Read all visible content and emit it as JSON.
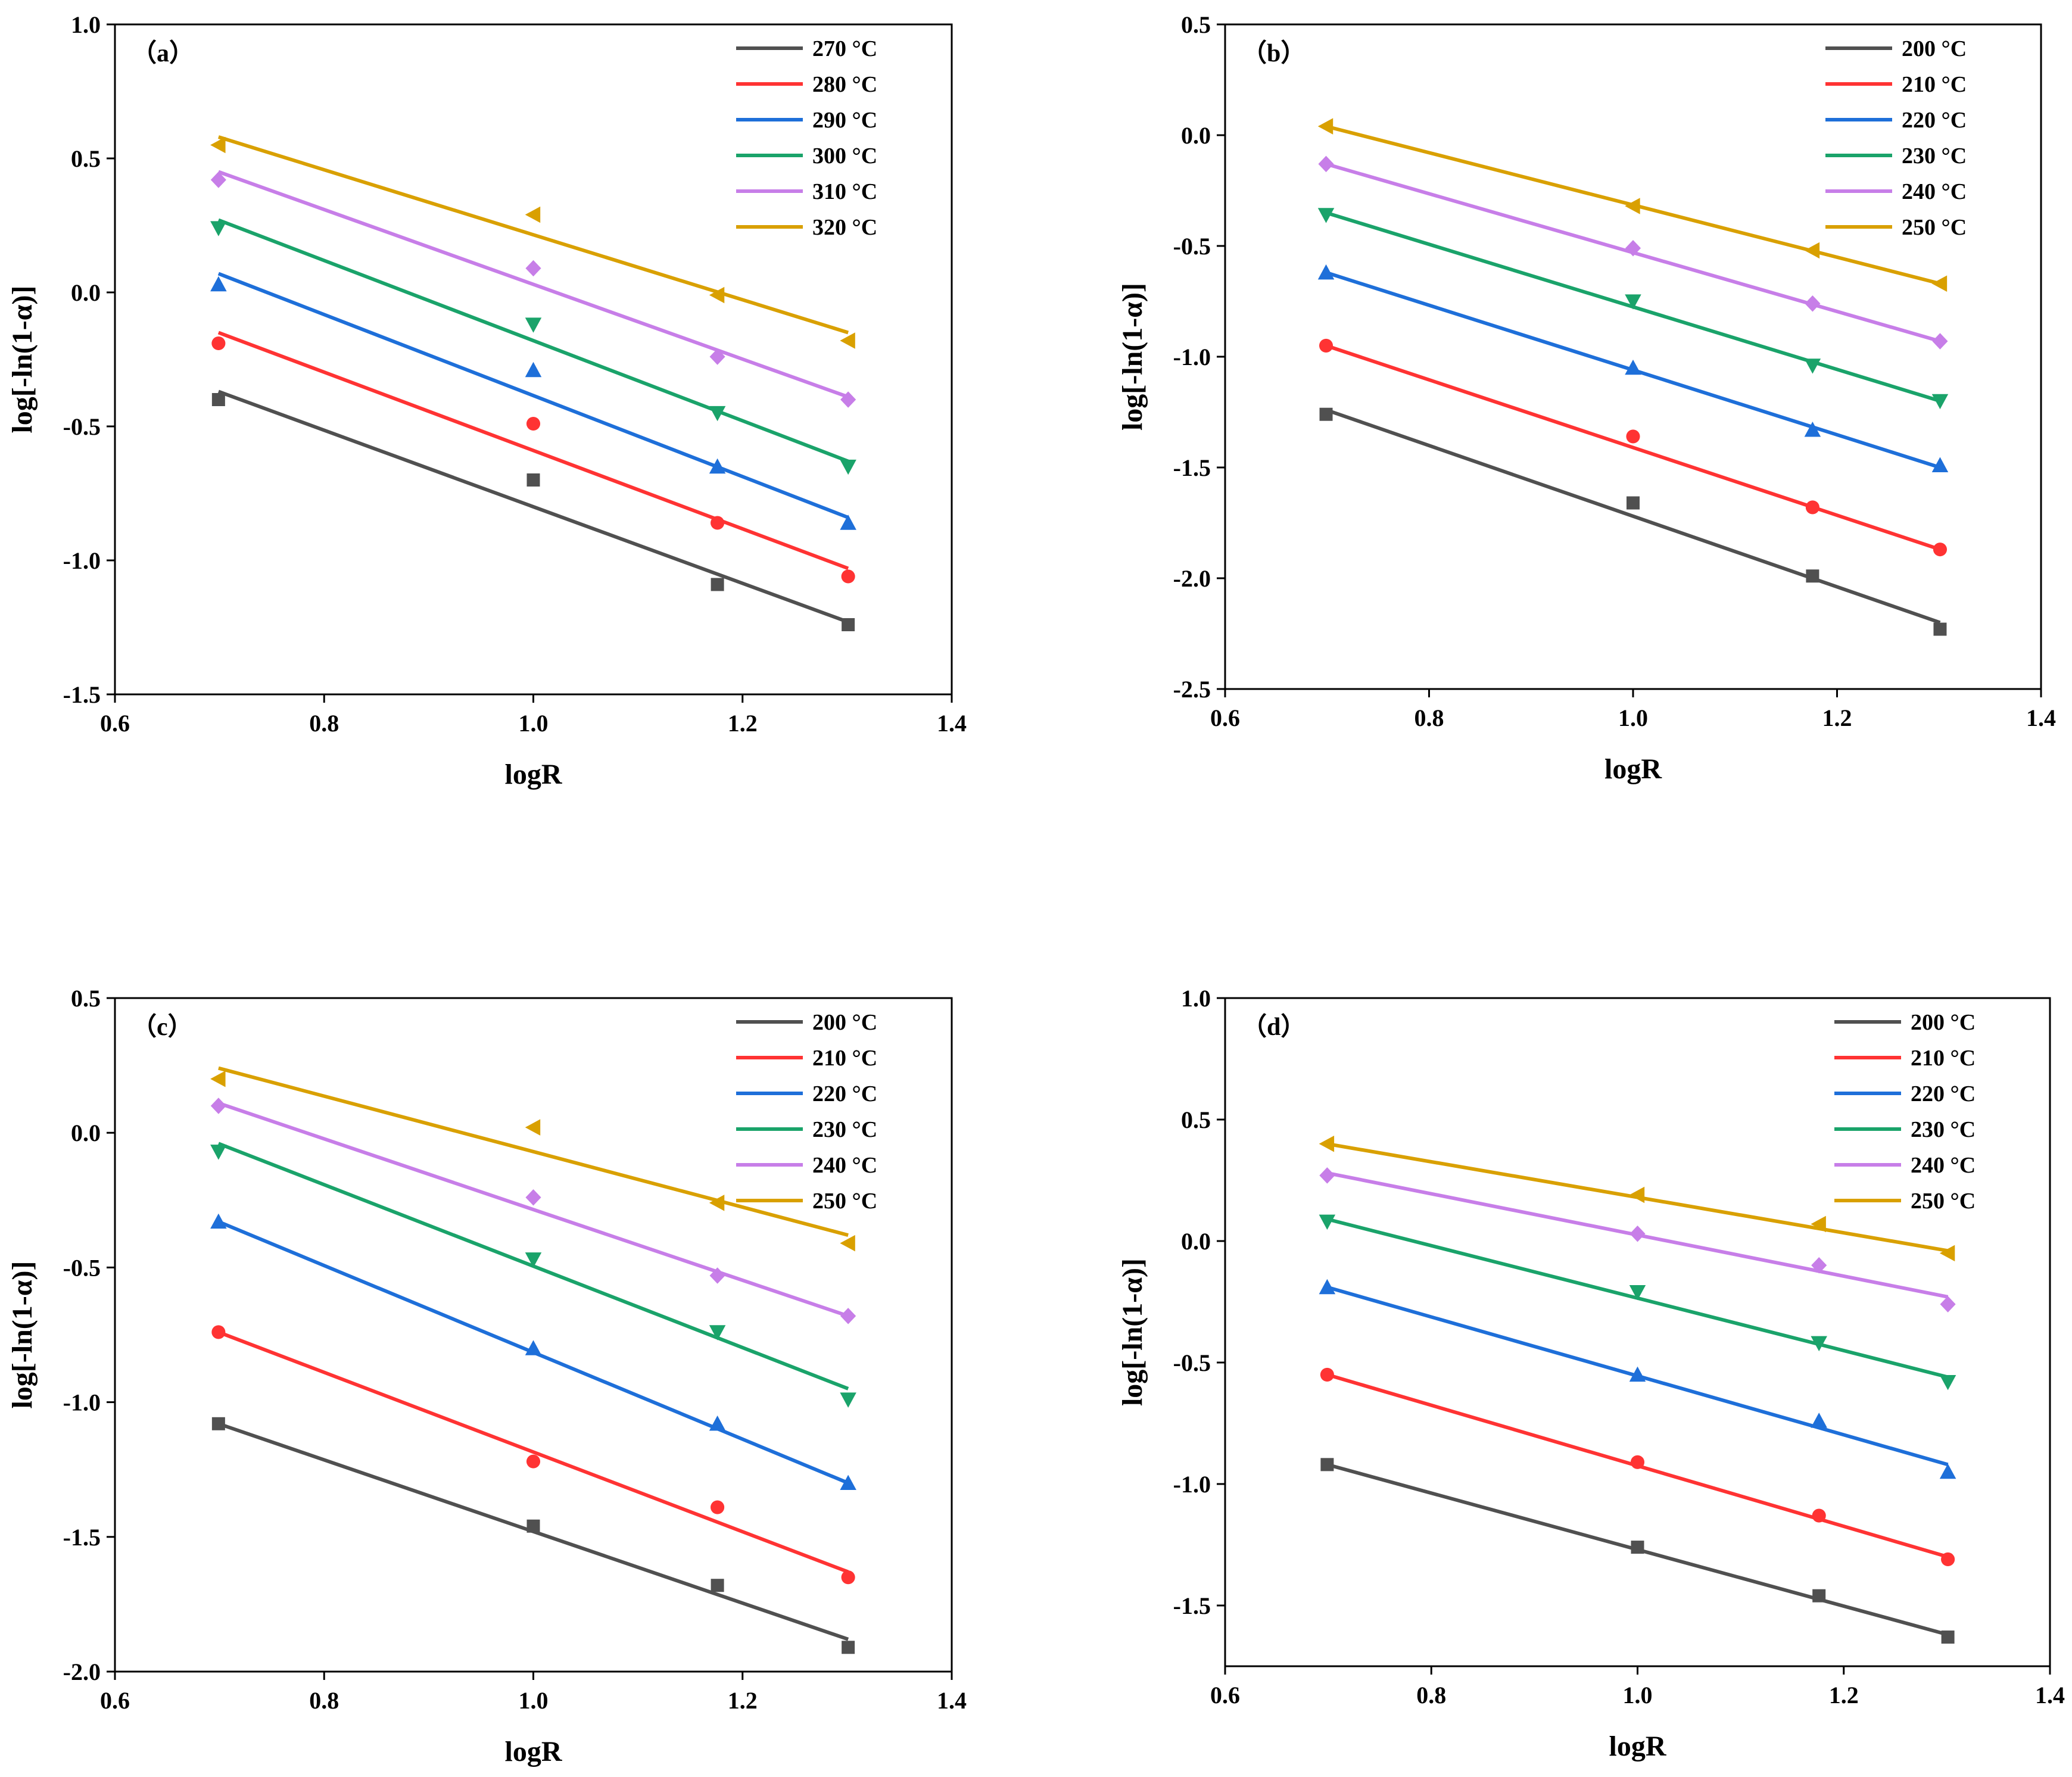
{
  "chart_data": [
    {
      "type": "scatter",
      "panel_label": "（a）",
      "xlabel": "logR",
      "ylabel": "log[-ln(1-α)]",
      "xlim": [
        0.6,
        1.4
      ],
      "ylim": [
        -1.5,
        1.0
      ],
      "xticks": [
        0.6,
        0.8,
        1.0,
        1.2,
        1.4
      ],
      "xtick_labels": [
        "0.6",
        "0.8",
        "1.0",
        "1.2",
        "1.4"
      ],
      "yticks": [
        -1.5,
        -1.0,
        -0.5,
        0.0,
        0.5,
        1.0
      ],
      "ytick_labels": [
        "-1.5",
        "-1.0",
        "-0.5",
        "0.0",
        "0.5",
        "1.0"
      ],
      "legend_position": "top-right",
      "x": [
        0.699,
        1.0,
        1.176,
        1.301
      ],
      "series": [
        {
          "name": "270 °C",
          "color": "#505050",
          "marker": "square",
          "values": [
            -0.4,
            -0.7,
            -1.09,
            -1.24
          ],
          "fit": [
            -0.37,
            -1.23
          ]
        },
        {
          "name": "280 °C",
          "color": "#ff3333",
          "marker": "circle",
          "values": [
            -0.19,
            -0.49,
            -0.86,
            -1.06
          ],
          "fit": [
            -0.15,
            -1.03
          ]
        },
        {
          "name": "290 °C",
          "color": "#1e6fd9",
          "marker": "triangle-up",
          "values": [
            0.03,
            -0.29,
            -0.65,
            -0.86
          ],
          "fit": [
            0.07,
            -0.84
          ]
        },
        {
          "name": "300 °C",
          "color": "#1aa36a",
          "marker": "triangle-down",
          "values": [
            0.24,
            -0.12,
            -0.45,
            -0.65
          ],
          "fit": [
            0.27,
            -0.63
          ]
        },
        {
          "name": "310 °C",
          "color": "#c77ee8",
          "marker": "diamond",
          "values": [
            0.42,
            0.09,
            -0.24,
            -0.4
          ],
          "fit": [
            0.45,
            -0.39
          ]
        },
        {
          "name": "320 °C",
          "color": "#d9a000",
          "marker": "triangle-left",
          "values": [
            0.55,
            0.29,
            -0.01,
            -0.18
          ],
          "fit": [
            0.58,
            -0.15
          ]
        }
      ]
    },
    {
      "type": "scatter",
      "panel_label": "（b）",
      "xlabel": "logR",
      "ylabel": "log[-ln(1-α)]",
      "xlim": [
        0.6,
        1.4
      ],
      "ylim": [
        -2.5,
        0.5
      ],
      "xticks": [
        0.6,
        0.8,
        1.0,
        1.2,
        1.4
      ],
      "xtick_labels": [
        "0.6",
        "0.8",
        "1.0",
        "1.2",
        "1.4"
      ],
      "yticks": [
        -2.5,
        -2.0,
        -1.5,
        -1.0,
        -0.5,
        0.0,
        0.5
      ],
      "ytick_labels": [
        "-2.5",
        "-2.0",
        "-1.5",
        "-1.0",
        "-0.5",
        "0.0",
        "0.5"
      ],
      "legend_position": "top-right",
      "x": [
        0.699,
        1.0,
        1.176,
        1.301
      ],
      "series": [
        {
          "name": "200 °C",
          "color": "#505050",
          "marker": "square",
          "values": [
            -1.26,
            -1.66,
            -1.99,
            -2.23
          ],
          "fit": [
            -1.24,
            -2.2
          ]
        },
        {
          "name": "210 °C",
          "color": "#ff3333",
          "marker": "circle",
          "values": [
            -0.95,
            -1.36,
            -1.68,
            -1.87
          ],
          "fit": [
            -0.95,
            -1.87
          ]
        },
        {
          "name": "220 °C",
          "color": "#1e6fd9",
          "marker": "triangle-up",
          "values": [
            -0.62,
            -1.05,
            -1.33,
            -1.49
          ],
          "fit": [
            -0.62,
            -1.5
          ]
        },
        {
          "name": "230 °C",
          "color": "#1aa36a",
          "marker": "triangle-down",
          "values": [
            -0.36,
            -0.75,
            -1.04,
            -1.2
          ],
          "fit": [
            -0.35,
            -1.2
          ]
        },
        {
          "name": "240 °C",
          "color": "#c77ee8",
          "marker": "diamond",
          "values": [
            -0.13,
            -0.51,
            -0.76,
            -0.93
          ],
          "fit": [
            -0.13,
            -0.93
          ]
        },
        {
          "name": "250 °C",
          "color": "#d9a000",
          "marker": "triangle-left",
          "values": [
            0.04,
            -0.32,
            -0.52,
            -0.67
          ],
          "fit": [
            0.04,
            -0.67
          ]
        }
      ]
    },
    {
      "type": "scatter",
      "panel_label": "（c）",
      "xlabel": "logR",
      "ylabel": "log[-ln(1-α)]",
      "xlim": [
        0.6,
        1.4
      ],
      "ylim": [
        -2.0,
        0.5
      ],
      "xticks": [
        0.6,
        0.8,
        1.0,
        1.2,
        1.4
      ],
      "xtick_labels": [
        "0.6",
        "0.8",
        "1.0",
        "1.2",
        "1.4"
      ],
      "yticks": [
        -2.0,
        -1.5,
        -1.0,
        -0.5,
        0.0,
        0.5
      ],
      "ytick_labels": [
        "-2.0",
        "-1.5",
        "-1.0",
        "-0.5",
        "0.0",
        "0.5"
      ],
      "legend_position": "top-right",
      "x": [
        0.699,
        1.0,
        1.176,
        1.301
      ],
      "series": [
        {
          "name": "200 °C",
          "color": "#505050",
          "marker": "square",
          "values": [
            -1.08,
            -1.46,
            -1.68,
            -1.91
          ],
          "fit": [
            -1.08,
            -1.88
          ]
        },
        {
          "name": "210 °C",
          "color": "#ff3333",
          "marker": "circle",
          "values": [
            -0.74,
            -1.22,
            -1.39,
            -1.65
          ],
          "fit": [
            -0.74,
            -1.63
          ]
        },
        {
          "name": "220 °C",
          "color": "#1e6fd9",
          "marker": "triangle-up",
          "values": [
            -0.33,
            -0.8,
            -1.08,
            -1.3
          ],
          "fit": [
            -0.33,
            -1.3
          ]
        },
        {
          "name": "230 °C",
          "color": "#1aa36a",
          "marker": "triangle-down",
          "values": [
            -0.07,
            -0.47,
            -0.74,
            -0.99
          ],
          "fit": [
            -0.04,
            -0.95
          ]
        },
        {
          "name": "240 °C",
          "color": "#c77ee8",
          "marker": "diamond",
          "values": [
            0.1,
            -0.24,
            -0.53,
            -0.68
          ],
          "fit": [
            0.11,
            -0.68
          ]
        },
        {
          "name": "250 °C",
          "color": "#d9a000",
          "marker": "triangle-left",
          "values": [
            0.2,
            0.02,
            -0.26,
            -0.41
          ],
          "fit": [
            0.24,
            -0.38
          ]
        }
      ]
    },
    {
      "type": "scatter",
      "panel_label": "（d）",
      "xlabel": "logR",
      "ylabel": "log[-ln(1-α)]",
      "xlim": [
        0.6,
        1.4
      ],
      "ylim": [
        -1.75,
        1.0
      ],
      "xticks": [
        0.6,
        0.8,
        1.0,
        1.2,
        1.4
      ],
      "xtick_labels": [
        "0.6",
        "0.8",
        "1.0",
        "1.2",
        "1.4"
      ],
      "yticks": [
        -1.5,
        -1.0,
        -0.5,
        0.0,
        0.5,
        1.0
      ],
      "ytick_labels": [
        "-1.5",
        "-1.0",
        "-0.5",
        "0.0",
        "0.5",
        "1.0"
      ],
      "legend_position": "top-right",
      "x": [
        0.699,
        1.0,
        1.176,
        1.301
      ],
      "series": [
        {
          "name": "200 °C",
          "color": "#505050",
          "marker": "square",
          "values": [
            -0.92,
            -1.26,
            -1.46,
            -1.63
          ],
          "fit": [
            -0.92,
            -1.62
          ]
        },
        {
          "name": "210 °C",
          "color": "#ff3333",
          "marker": "circle",
          "values": [
            -0.55,
            -0.91,
            -1.13,
            -1.31
          ],
          "fit": [
            -0.55,
            -1.3
          ]
        },
        {
          "name": "220 °C",
          "color": "#1e6fd9",
          "marker": "triangle-up",
          "values": [
            -0.19,
            -0.55,
            -0.74,
            -0.95
          ],
          "fit": [
            -0.19,
            -0.92
          ]
        },
        {
          "name": "230 °C",
          "color": "#1aa36a",
          "marker": "triangle-down",
          "values": [
            0.08,
            -0.21,
            -0.42,
            -0.58
          ],
          "fit": [
            0.09,
            -0.56
          ]
        },
        {
          "name": "240 °C",
          "color": "#c77ee8",
          "marker": "diamond",
          "values": [
            0.27,
            0.03,
            -0.1,
            -0.26
          ],
          "fit": [
            0.28,
            -0.23
          ]
        },
        {
          "name": "250 °C",
          "color": "#d9a000",
          "marker": "triangle-left",
          "values": [
            0.4,
            0.19,
            0.07,
            -0.05
          ],
          "fit": [
            0.4,
            -0.04
          ]
        }
      ]
    }
  ]
}
